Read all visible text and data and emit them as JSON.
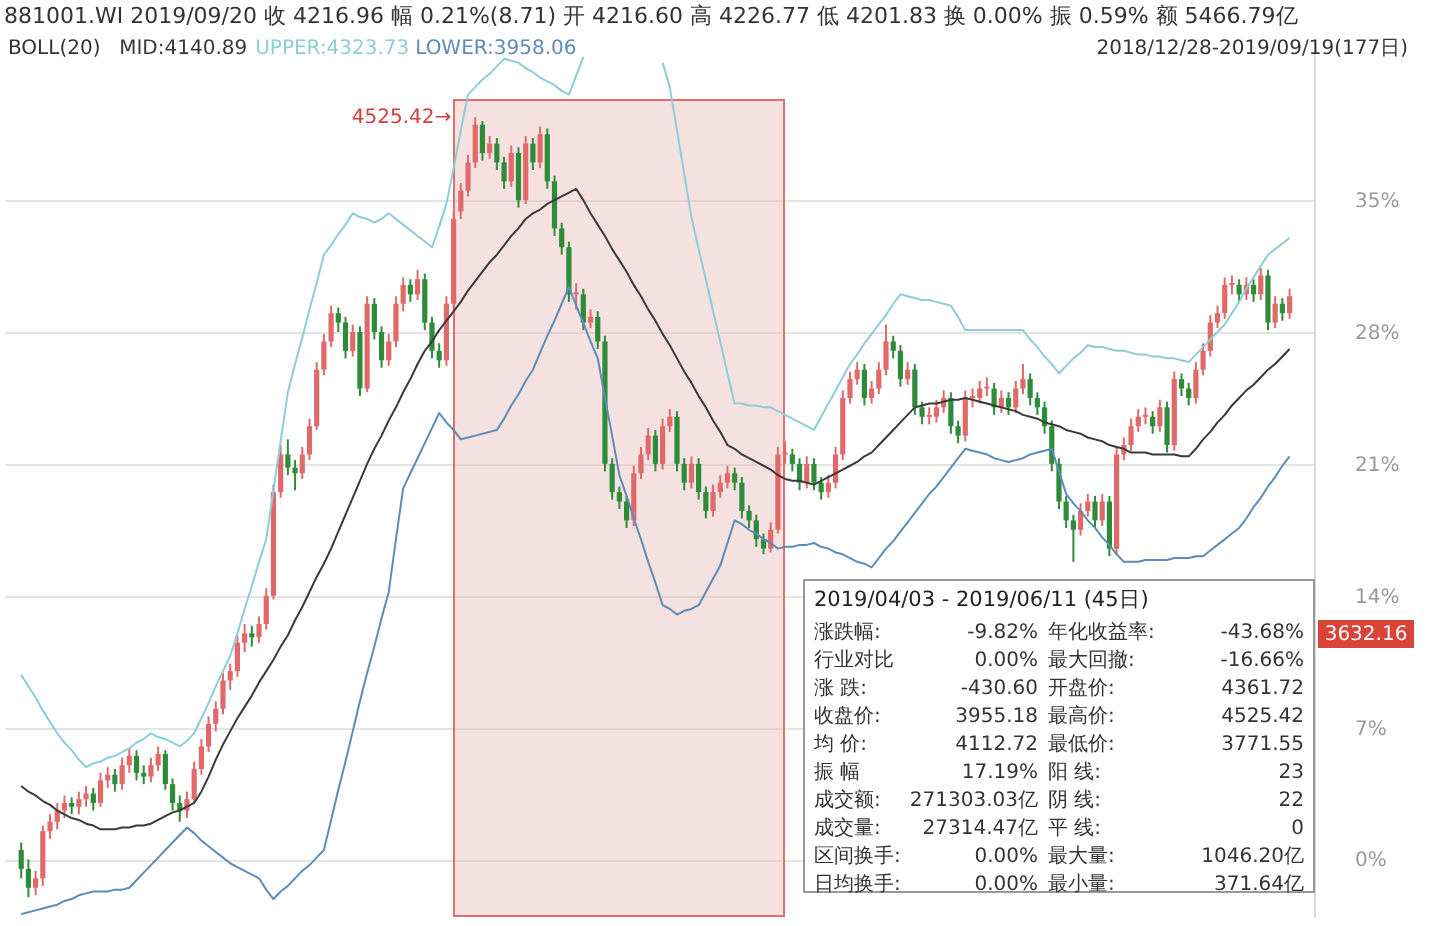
{
  "chart_data": {
    "type": "candlestick",
    "title": "881001.WI  2019/09/20  收 4216.96  幅 0.21%(8.71)  开 4216.60  高 4226.77  低 4201.83  换 0.00%  振 0.59%  额 5466.79亿",
    "categories": [
      null,
      null,
      null,
      null,
      null,
      null,
      null,
      null,
      null,
      null,
      null,
      null,
      null,
      null,
      null,
      null,
      null,
      null,
      null,
      null,
      null,
      null,
      null,
      null,
      null,
      null,
      null,
      null,
      null,
      null,
      null,
      null,
      null,
      null,
      null,
      null,
      null,
      null,
      null,
      null,
      null,
      null,
      null,
      null,
      null,
      null,
      null,
      null,
      null,
      null,
      null,
      null,
      null,
      null,
      null,
      null,
      null,
      null,
      null,
      null,
      null,
      null,
      null,
      null,
      null,
      null,
      null,
      null,
      null,
      null,
      null,
      null,
      null,
      null,
      null,
      null,
      null,
      null,
      null,
      null,
      null,
      null,
      null,
      null,
      null,
      null,
      null,
      null,
      null,
      null,
      null,
      null,
      null,
      null,
      null,
      null,
      null,
      null,
      null,
      null,
      null,
      null,
      null,
      null,
      null,
      null,
      null,
      null,
      null,
      null,
      null,
      null,
      null,
      null,
      null,
      null,
      null,
      null,
      null,
      null,
      null,
      null,
      null,
      null,
      null,
      null,
      null,
      null,
      null,
      null,
      null,
      null,
      null,
      null,
      null,
      null,
      null,
      null,
      null,
      null,
      null,
      null,
      null,
      null,
      null,
      null,
      null,
      null,
      null,
      null,
      null,
      null,
      null,
      null,
      null,
      null,
      null,
      null,
      null,
      null,
      null,
      null,
      null,
      null,
      null,
      null,
      null,
      null,
      null,
      null,
      null,
      null,
      null,
      null,
      null,
      null,
      null
    ],
    "colors": [
      "#2e8b3a",
      "#2e8b3a",
      "#e06a6a",
      "#e06a6a",
      "#e06a6a",
      "#e06a6a",
      "#e06a6a",
      "#2e8b3a",
      "#e06a6a",
      "#e06a6a",
      "#2e8b3a",
      "#e06a6a",
      "#e06a6a",
      "#2e8b3a",
      "#e06a6a",
      "#e06a6a",
      "#2e8b3a",
      "#2e8b3a",
      "#e06a6a",
      "#e06a6a",
      "#2e8b3a",
      "#2e8b3a",
      "#2e8b3a",
      "#e06a6a",
      "#e06a6a",
      "#e06a6a",
      "#e06a6a",
      "#e06a6a",
      "#e06a6a",
      "#e06a6a",
      "#e06a6a",
      "#e06a6a",
      "#2e8b3a",
      "#e06a6a",
      "#e06a6a",
      "#e06a6a",
      "#e06a6a",
      "#2e8b3a",
      "#2e8b3a",
      "#e06a6a",
      "#e06a6a",
      "#e06a6a",
      "#e06a6a",
      "#e06a6a",
      "#2e8b3a",
      "#2e8b3a",
      "#e06a6a",
      "#2e8b3a",
      "#e06a6a",
      "#2e8b3a",
      "#2e8b3a",
      "#e06a6a",
      "#e06a6a",
      "#e06a6a",
      "#2e8b3a",
      "#e06a6a",
      "#2e8b3a",
      "#2e8b3a",
      "#2e8b3a",
      "#e06a6a",
      "#e06a6a",
      "#e06a6a",
      "#e06a6a",
      "#e06a6a",
      "#2e8b3a",
      "#e06a6a",
      "#2e8b3a",
      "#2e8b3a",
      "#e06a6a",
      "#2e8b3a",
      "#e06a6a",
      "#2e8b3a",
      "#e06a6a",
      "#2e8b3a",
      "#2e8b3a",
      "#2e8b3a",
      "#2e8b3a",
      "#e06a6a",
      "#2e8b3a",
      "#e06a6a",
      "#2e8b3a",
      "#2e8b3a",
      "#2e8b3a",
      "#2e8b3a",
      "#2e8b3a",
      "#e06a6a",
      "#e06a6a",
      "#e06a6a",
      "#2e8b3a",
      "#e06a6a",
      "#e06a6a",
      "#2e8b3a",
      "#2e8b3a",
      "#e06a6a",
      "#2e8b3a",
      "#2e8b3a",
      "#e06a6a",
      "#e06a6a",
      "#e06a6a",
      "#2e8b3a",
      "#2e8b3a",
      "#2e8b3a",
      "#2e8b3a",
      "#2e8b3a",
      "#e06a6a",
      "#e06a6a",
      "#e06a6a",
      "#2e8b3a",
      "#2e8b3a",
      "#e06a6a",
      "#2e8b3a",
      "#2e8b3a",
      "#e06a6a",
      "#e06a6a",
      "#e06a6a",
      "#e06a6a",
      "#e06a6a",
      "#2e8b3a",
      "#e06a6a",
      "#e06a6a",
      "#e06a6a",
      "#2e8b3a",
      "#2e8b3a",
      "#e06a6a",
      "#2e8b3a",
      "#2e8b3a",
      "#e06a6a",
      "#e06a6a",
      "#e06a6a",
      "#2e8b3a",
      "#2e8b3a",
      "#e06a6a",
      "#e06a6a",
      "#e06a6a",
      "#e06a6a",
      "#2e8b3a",
      "#e06a6a",
      "#2e8b3a",
      "#e06a6a",
      "#e06a6a",
      "#2e8b3a",
      "#2e8b3a",
      "#2e8b3a",
      "#2e8b3a",
      "#2e8b3a",
      "#2e8b3a",
      "#2e8b3a",
      "#e06a6a",
      "#e06a6a",
      "#2e8b3a",
      "#e06a6a",
      "#2e8b3a",
      "#e06a6a",
      "#e06a6a",
      "#e06a6a",
      "#e06a6a",
      "#e06a6a",
      "#2e8b3a",
      "#e06a6a",
      "#2e8b3a",
      "#e06a6a",
      "#2e8b3a",
      "#2e8b3a",
      "#e06a6a",
      "#e06a6a",
      "#e06a6a",
      "#e06a6a",
      "#e06a6a",
      "#e06a6a",
      "#2e8b3a",
      "#e06a6a",
      "#2e8b3a",
      "#e06a6a",
      "#2e8b3a",
      "#e06a6a",
      "#2e8b3a",
      "#e06a6a"
    ],
    "ohlc": [
      [
        0.5,
        0.9,
        -1.0,
        -0.5
      ],
      [
        -0.5,
        0.0,
        -2.0,
        -1.5
      ],
      [
        -1.5,
        -0.6,
        -1.9,
        -1.0
      ],
      [
        -1.0,
        1.8,
        -1.4,
        1.5
      ],
      [
        1.5,
        2.4,
        1.1,
        2.0
      ],
      [
        2.0,
        3.0,
        1.6,
        2.6
      ],
      [
        2.6,
        3.4,
        2.2,
        3.0
      ],
      [
        3.0,
        3.3,
        2.4,
        2.8
      ],
      [
        2.8,
        3.6,
        2.4,
        3.2
      ],
      [
        3.2,
        3.9,
        2.8,
        3.5
      ],
      [
        3.5,
        3.8,
        2.6,
        3.0
      ],
      [
        3.0,
        4.6,
        2.8,
        4.2
      ],
      [
        4.2,
        4.9,
        3.8,
        4.5
      ],
      [
        4.5,
        4.8,
        3.6,
        4.0
      ],
      [
        4.0,
        5.4,
        3.7,
        5.0
      ],
      [
        5.0,
        5.9,
        4.6,
        5.5
      ],
      [
        5.5,
        5.8,
        4.2,
        4.6
      ],
      [
        4.6,
        5.0,
        4.0,
        4.4
      ],
      [
        4.4,
        5.4,
        4.1,
        5.0
      ],
      [
        5.0,
        6.0,
        4.7,
        5.6
      ],
      [
        5.6,
        5.8,
        3.7,
        4.0
      ],
      [
        4.0,
        4.3,
        2.6,
        3.0
      ],
      [
        3.0,
        3.4,
        2.0,
        2.6
      ],
      [
        2.6,
        3.6,
        2.2,
        3.2
      ],
      [
        3.2,
        5.2,
        3.0,
        4.8
      ],
      [
        4.8,
        6.4,
        4.5,
        6.0
      ],
      [
        6.0,
        7.6,
        5.7,
        7.2
      ],
      [
        7.2,
        8.4,
        6.8,
        8.0
      ],
      [
        8.0,
        9.9,
        7.7,
        9.5
      ],
      [
        9.5,
        10.4,
        9.0,
        10.0
      ],
      [
        10.0,
        11.9,
        9.7,
        11.5
      ],
      [
        11.5,
        12.5,
        11.0,
        12.0
      ],
      [
        12.0,
        12.4,
        11.3,
        11.8
      ],
      [
        11.8,
        12.9,
        11.5,
        12.5
      ],
      [
        12.5,
        14.4,
        12.2,
        14.0
      ],
      [
        14.0,
        19.9,
        13.8,
        19.5
      ],
      [
        19.5,
        22.0,
        19.2,
        21.5
      ],
      [
        21.5,
        22.3,
        20.4,
        20.8
      ],
      [
        20.8,
        21.2,
        19.6,
        20.5
      ],
      [
        20.5,
        21.9,
        20.2,
        21.5
      ],
      [
        21.5,
        23.4,
        21.2,
        23.0
      ],
      [
        23.0,
        26.4,
        22.8,
        26.0
      ],
      [
        26.0,
        27.9,
        25.7,
        27.5
      ],
      [
        27.5,
        29.4,
        27.2,
        29.0
      ],
      [
        29.0,
        29.3,
        28.0,
        28.5
      ],
      [
        28.5,
        28.8,
        26.6,
        27.0
      ],
      [
        27.0,
        28.4,
        26.7,
        28.0
      ],
      [
        28.0,
        28.3,
        24.6,
        25.0
      ],
      [
        25.0,
        29.9,
        24.8,
        29.5
      ],
      [
        29.5,
        29.8,
        27.6,
        28.0
      ],
      [
        28.0,
        28.3,
        26.1,
        26.5
      ],
      [
        26.5,
        27.9,
        26.2,
        27.5
      ],
      [
        27.5,
        29.9,
        27.2,
        29.5
      ],
      [
        29.5,
        30.9,
        29.1,
        30.5
      ],
      [
        30.5,
        30.8,
        29.6,
        30.0
      ],
      [
        30.0,
        31.3,
        29.7,
        30.8
      ],
      [
        30.8,
        31.1,
        28.1,
        28.5
      ],
      [
        28.5,
        28.8,
        26.6,
        27.0
      ],
      [
        27.0,
        27.4,
        26.1,
        26.5
      ],
      [
        26.5,
        29.9,
        26.2,
        29.5
      ],
      [
        29.5,
        34.4,
        29.2,
        34.0
      ],
      [
        34.4,
        35.9,
        34.0,
        35.5
      ],
      [
        35.5,
        37.4,
        35.2,
        37.0
      ],
      [
        37.0,
        39.4,
        36.7,
        39.0
      ],
      [
        39.0,
        39.2,
        37.1,
        37.5
      ],
      [
        37.5,
        38.4,
        37.2,
        38.0
      ],
      [
        38.0,
        38.3,
        36.6,
        37.0
      ],
      [
        37.0,
        37.3,
        35.6,
        36.0
      ],
      [
        36.0,
        37.9,
        35.7,
        37.5
      ],
      [
        37.5,
        37.8,
        34.6,
        35.0
      ],
      [
        35.0,
        38.4,
        34.8,
        38.0
      ],
      [
        38.0,
        38.3,
        36.6,
        37.0
      ],
      [
        37.0,
        38.9,
        36.7,
        38.5
      ],
      [
        38.5,
        38.8,
        35.6,
        36.0
      ],
      [
        36.0,
        36.3,
        33.1,
        33.5
      ],
      [
        33.5,
        33.8,
        32.1,
        32.5
      ],
      [
        32.5,
        32.8,
        29.6,
        30.0
      ],
      [
        30.0,
        30.6,
        29.2,
        30.1
      ],
      [
        30.0,
        30.3,
        28.1,
        28.5
      ],
      [
        28.5,
        29.2,
        28.2,
        28.8
      ],
      [
        28.8,
        29.1,
        27.1,
        27.5
      ],
      [
        27.5,
        27.8,
        20.6,
        21.0
      ],
      [
        21.0,
        21.3,
        19.1,
        19.5
      ],
      [
        19.5,
        19.8,
        18.6,
        19.0
      ],
      [
        19.0,
        19.3,
        17.6,
        18.0
      ],
      [
        18.0,
        20.9,
        17.7,
        20.5
      ],
      [
        20.5,
        21.9,
        20.2,
        21.5
      ],
      [
        21.5,
        22.9,
        21.2,
        22.5
      ],
      [
        22.5,
        22.8,
        20.6,
        21.0
      ],
      [
        21.0,
        23.4,
        20.7,
        23.0
      ],
      [
        23.0,
        23.9,
        22.7,
        23.5
      ],
      [
        23.5,
        23.8,
        20.6,
        21.0
      ],
      [
        21.0,
        21.3,
        19.6,
        20.0
      ],
      [
        20.0,
        21.4,
        19.7,
        21.0
      ],
      [
        21.0,
        21.3,
        19.1,
        19.5
      ],
      [
        19.5,
        19.8,
        18.1,
        18.5
      ],
      [
        18.5,
        19.9,
        18.2,
        19.5
      ],
      [
        19.5,
        20.4,
        19.2,
        20.0
      ],
      [
        20.0,
        20.9,
        19.7,
        20.5
      ],
      [
        20.5,
        20.8,
        19.6,
        20.0
      ],
      [
        20.0,
        20.3,
        18.1,
        18.5
      ],
      [
        18.5,
        18.8,
        17.6,
        18.0
      ],
      [
        18.0,
        18.3,
        16.6,
        17.0
      ],
      [
        17.0,
        17.3,
        16.2,
        16.5
      ],
      [
        16.5,
        17.9,
        16.3,
        17.5
      ],
      [
        17.5,
        21.9,
        17.3,
        21.5
      ],
      [
        21.5,
        22.2,
        21.0,
        21.6
      ],
      [
        21.5,
        21.8,
        20.6,
        21.0
      ],
      [
        21.0,
        21.3,
        19.6,
        20.0
      ],
      [
        20.0,
        21.4,
        19.7,
        21.0
      ],
      [
        21.0,
        21.3,
        19.6,
        20.0
      ],
      [
        20.0,
        20.3,
        19.1,
        19.5
      ],
      [
        19.5,
        20.4,
        19.2,
        20.0
      ],
      [
        20.0,
        21.9,
        19.7,
        21.5
      ],
      [
        21.5,
        24.9,
        21.2,
        24.5
      ],
      [
        24.5,
        25.9,
        24.2,
        25.5
      ],
      [
        25.5,
        26.4,
        25.2,
        26.0
      ],
      [
        26.0,
        26.3,
        24.1,
        24.5
      ],
      [
        24.5,
        25.4,
        24.2,
        25.0
      ],
      [
        25.0,
        26.4,
        24.7,
        26.0
      ],
      [
        26.0,
        28.4,
        25.7,
        27.5
      ],
      [
        27.5,
        27.8,
        26.6,
        27.0
      ],
      [
        27.0,
        27.3,
        25.1,
        25.5
      ],
      [
        25.5,
        26.4,
        25.2,
        26.0
      ],
      [
        26.0,
        26.3,
        23.6,
        24.0
      ],
      [
        24.0,
        24.3,
        23.1,
        23.5
      ],
      [
        23.5,
        24.0,
        23.1,
        23.6
      ],
      [
        23.5,
        24.4,
        23.2,
        24.0
      ],
      [
        24.0,
        24.9,
        23.7,
        24.5
      ],
      [
        24.5,
        24.8,
        22.6,
        23.0
      ],
      [
        23.0,
        23.3,
        22.1,
        22.5
      ],
      [
        22.5,
        24.9,
        22.2,
        24.5
      ],
      [
        24.5,
        25.0,
        24.0,
        24.6
      ],
      [
        24.5,
        25.4,
        24.2,
        25.0
      ],
      [
        25.0,
        25.6,
        24.6,
        25.1
      ],
      [
        25.0,
        25.3,
        23.6,
        24.0
      ],
      [
        24.0,
        24.9,
        23.7,
        24.5
      ],
      [
        24.5,
        24.8,
        23.6,
        24.0
      ],
      [
        24.0,
        25.4,
        23.7,
        25.0
      ],
      [
        25.0,
        26.3,
        24.7,
        25.5
      ],
      [
        25.5,
        25.8,
        24.1,
        24.5
      ],
      [
        24.5,
        24.8,
        23.6,
        24.0
      ],
      [
        24.0,
        24.3,
        22.6,
        23.0
      ],
      [
        23.0,
        23.3,
        20.6,
        21.0
      ],
      [
        21.0,
        21.3,
        18.6,
        19.0
      ],
      [
        19.0,
        19.3,
        17.6,
        18.0
      ],
      [
        18.0,
        18.3,
        15.8,
        17.5
      ],
      [
        17.5,
        18.9,
        17.2,
        18.5
      ],
      [
        18.5,
        19.4,
        18.2,
        19.0
      ],
      [
        19.0,
        19.3,
        17.6,
        18.0
      ],
      [
        18.0,
        19.4,
        17.7,
        19.0
      ],
      [
        19.0,
        19.3,
        16.1,
        16.5
      ],
      [
        16.5,
        21.9,
        16.2,
        21.5
      ],
      [
        21.5,
        22.4,
        21.2,
        22.0
      ],
      [
        22.0,
        23.4,
        21.7,
        23.0
      ],
      [
        23.0,
        23.9,
        22.7,
        23.5
      ],
      [
        23.5,
        24.0,
        23.1,
        23.6
      ],
      [
        23.5,
        23.8,
        22.6,
        23.0
      ],
      [
        23.0,
        24.4,
        22.7,
        24.0
      ],
      [
        24.0,
        24.3,
        21.6,
        22.0
      ],
      [
        22.0,
        25.9,
        21.7,
        25.5
      ],
      [
        25.5,
        25.8,
        24.6,
        25.0
      ],
      [
        25.0,
        25.3,
        24.1,
        24.5
      ],
      [
        24.5,
        26.4,
        24.2,
        26.0
      ],
      [
        26.0,
        27.4,
        25.7,
        27.0
      ],
      [
        27.0,
        28.9,
        26.7,
        28.5
      ],
      [
        28.5,
        29.4,
        28.2,
        29.0
      ],
      [
        29.0,
        30.9,
        28.7,
        30.5
      ],
      [
        30.5,
        31.0,
        30.0,
        30.6
      ],
      [
        30.5,
        30.8,
        29.6,
        30.0
      ],
      [
        30.0,
        30.9,
        29.7,
        30.5
      ],
      [
        30.5,
        30.8,
        29.6,
        30.0
      ],
      [
        30.0,
        31.4,
        29.7,
        31.0
      ],
      [
        31.0,
        31.3,
        28.1,
        28.5
      ],
      [
        28.5,
        29.9,
        28.2,
        29.5
      ],
      [
        29.5,
        29.8,
        28.6,
        29.0
      ],
      [
        29.0,
        30.3,
        28.7,
        29.9
      ]
    ],
    "series": [
      {
        "type": "line",
        "name": "MID:4140.89",
        "color": "#3a3a3a",
        "values": [
          3.9,
          3.6,
          3.4,
          3.1,
          2.9,
          2.6,
          2.4,
          2.2,
          2.1,
          1.9,
          1.8,
          1.6,
          1.6,
          1.6,
          1.7,
          1.7,
          1.8,
          1.8,
          1.9,
          2.1,
          2.3,
          2.5,
          2.6,
          2.8,
          3.0,
          3.6,
          4.4,
          5.3,
          6.1,
          6.8,
          7.5,
          8.1,
          8.7,
          9.4,
          10.0,
          10.6,
          11.3,
          11.9,
          12.7,
          13.4,
          14.2,
          15.0,
          15.7,
          16.5,
          17.4,
          18.3,
          19.2,
          20.1,
          21.0,
          21.8,
          22.5,
          23.3,
          24.0,
          24.8,
          25.5,
          26.3,
          27.0,
          27.5,
          28.1,
          28.6,
          29.1,
          29.6,
          30.2,
          30.7,
          31.2,
          31.7,
          32.1,
          32.6,
          33.1,
          33.5,
          34.0,
          34.3,
          34.5,
          34.8,
          35.0,
          35.2,
          35.4,
          35.6,
          35.0,
          34.3,
          33.7,
          33.1,
          32.4,
          31.8,
          31.2,
          30.5,
          29.9,
          29.2,
          28.6,
          27.9,
          27.3,
          26.6,
          25.9,
          25.3,
          24.6,
          24.0,
          23.3,
          22.7,
          22.0,
          21.8,
          21.5,
          21.3,
          21.1,
          20.9,
          20.7,
          20.4,
          20.2,
          20.1,
          20.1,
          20.0,
          19.9,
          20.1,
          20.3,
          20.5,
          20.7,
          20.9,
          21.1,
          21.4,
          21.6,
          22.0,
          22.4,
          22.8,
          23.2,
          23.6,
          24.0,
          24.1,
          24.2,
          24.2,
          24.3,
          24.4,
          24.4,
          24.5,
          24.4,
          24.3,
          24.2,
          24.1,
          24.0,
          23.9,
          23.8,
          23.6,
          23.5,
          23.4,
          23.2,
          23.1,
          23.0,
          22.8,
          22.7,
          22.6,
          22.4,
          22.3,
          22.2,
          22.0,
          21.9,
          21.8,
          21.6,
          21.6,
          21.6,
          21.5,
          21.5,
          21.5,
          21.5,
          21.4,
          21.4,
          21.8,
          22.3,
          22.7,
          23.2,
          23.6,
          24.1,
          24.5,
          24.9,
          25.2,
          25.6,
          26.0,
          26.3,
          26.7,
          27.1
        ]
      },
      {
        "type": "line",
        "name": "UPPER:4323.73",
        "color": "#8ccdd6",
        "values": [
          9.8,
          9.2,
          8.6,
          7.9,
          7.3,
          6.7,
          6.2,
          5.8,
          5.3,
          4.9,
          5.1,
          5.2,
          5.4,
          5.5,
          5.7,
          5.9,
          6.2,
          6.4,
          6.7,
          6.5,
          6.4,
          6.2,
          6.0,
          6.3,
          6.7,
          7.5,
          8.3,
          9.2,
          10.0,
          10.8,
          12.0,
          13.3,
          14.5,
          15.8,
          17.0,
          19.6,
          22.2,
          24.8,
          26.3,
          27.7,
          29.2,
          30.6,
          32.1,
          32.6,
          33.2,
          33.7,
          34.3,
          34.1,
          34.0,
          33.8,
          34.0,
          34.3,
          34.0,
          33.7,
          33.4,
          33.1,
          32.8,
          32.5,
          33.6,
          34.8,
          36.7,
          38.7,
          40.6,
          41.0,
          41.4,
          41.7,
          42.1,
          42.5,
          42.4,
          42.3,
          42.0,
          41.8,
          41.5,
          41.3,
          41.1,
          40.8,
          40.6,
          41.6,
          42.6,
          null,
          null,
          null,
          null,
          null,
          null,
          null,
          null,
          null,
          null,
          42.3,
          41.0,
          38.7,
          36.4,
          34.1,
          32.4,
          30.8,
          29.1,
          27.5,
          25.8,
          24.2,
          24.2,
          24.1,
          24.1,
          24.0,
          24.0,
          23.8,
          23.6,
          23.4,
          23.2,
          23.0,
          22.8,
          23.5,
          24.2,
          24.9,
          25.6,
          26.3,
          26.8,
          27.4,
          27.9,
          28.4,
          28.9,
          29.5,
          30.0,
          29.9,
          29.8,
          29.7,
          29.7,
          29.6,
          29.5,
          29.4,
          28.8,
          28.1,
          28.1,
          28.1,
          28.1,
          28.1,
          28.1,
          28.1,
          28.1,
          28.1,
          27.6,
          27.2,
          26.7,
          26.3,
          25.8,
          26.2,
          26.6,
          26.9,
          27.3,
          27.2,
          27.2,
          27.1,
          27.0,
          27.0,
          26.9,
          26.8,
          26.8,
          26.7,
          26.7,
          26.6,
          26.6,
          26.5,
          26.4,
          26.8,
          27.2,
          27.6,
          28.0,
          28.4,
          29.0,
          29.6,
          30.3,
          30.9,
          31.5,
          32.1,
          32.4,
          32.7,
          33.0
        ]
      },
      {
        "type": "line",
        "name": "LOWER:3958.06",
        "color": "#5b8db8",
        "values": [
          -2.9,
          -2.8,
          -2.7,
          -2.6,
          -2.5,
          -2.4,
          -2.2,
          -2.1,
          -1.9,
          -1.8,
          -1.7,
          -1.7,
          -1.7,
          -1.6,
          -1.6,
          -1.5,
          -1.1,
          -0.7,
          -0.3,
          0.1,
          0.5,
          0.9,
          1.3,
          1.7,
          1.4,
          1.0,
          0.7,
          0.4,
          0.1,
          -0.2,
          -0.4,
          -0.6,
          -0.8,
          -1.0,
          -1.6,
          -2.1,
          -1.7,
          -1.4,
          -1.0,
          -0.6,
          -0.3,
          0.1,
          0.5,
          2.1,
          3.7,
          5.2,
          6.8,
          8.4,
          9.9,
          11.3,
          12.8,
          14.2,
          17.0,
          19.7,
          20.5,
          21.3,
          22.1,
          22.9,
          23.7,
          23.2,
          22.8,
          22.3,
          22.4,
          22.5,
          22.6,
          22.7,
          22.8,
          23.4,
          24.1,
          24.7,
          25.4,
          26.0,
          26.9,
          27.8,
          28.6,
          29.5,
          30.4,
          29.4,
          28.5,
          27.5,
          26.6,
          24.5,
          22.5,
          20.4,
          19.3,
          18.1,
          17.0,
          15.8,
          14.7,
          13.5,
          13.3,
          13.0,
          13.2,
          13.3,
          13.5,
          14.2,
          14.9,
          15.6,
          16.8,
          18.0,
          17.8,
          17.5,
          17.3,
          17.0,
          16.8,
          16.5,
          16.6,
          16.6,
          16.7,
          16.7,
          16.8,
          16.6,
          16.5,
          16.3,
          16.2,
          16.0,
          15.8,
          15.7,
          15.5,
          16.0,
          16.5,
          16.9,
          17.4,
          17.9,
          18.4,
          18.9,
          19.4,
          19.8,
          20.3,
          20.8,
          21.3,
          21.8,
          21.7,
          21.6,
          21.5,
          21.3,
          21.2,
          21.1,
          21.2,
          21.3,
          21.5,
          21.6,
          21.7,
          21.8,
          20.6,
          19.4,
          18.9,
          18.5,
          18.0,
          17.6,
          17.1,
          16.7,
          16.2,
          15.8,
          15.8,
          15.8,
          15.9,
          15.9,
          15.9,
          15.9,
          16.0,
          16.0,
          16.0,
          16.1,
          16.1,
          16.4,
          16.7,
          17.0,
          17.3,
          17.6,
          18.1,
          18.7,
          19.2,
          19.8,
          20.3,
          20.9,
          21.4
        ]
      }
    ],
    "ylim": [
      -3,
      43.5
    ],
    "yticks": [
      {
        "value": 0,
        "label": "0%"
      },
      {
        "value": 7,
        "label": "7%"
      },
      {
        "value": 14,
        "label": "14%"
      },
      {
        "value": 21,
        "label": "21%"
      },
      {
        "value": 28,
        "label": "28%"
      },
      {
        "value": 35,
        "label": "35%"
      }
    ],
    "tick_labels": "y",
    "grid": "y",
    "annotations": [
      "2018/12/28-2019/09/19(177日)",
      "BOLL(20)",
      "4525.42→",
      "3632.16",
      "2019/04/03 - 2019/06/11 (45日)",
      "涨跌幅:",
      "-9.82%",
      "年化收益率:",
      "-43.68%",
      "行业对比",
      "0.00%",
      "最大回撤:",
      "-16.66%",
      "涨  跌:",
      "-430.60",
      "开盘价:",
      "4361.72",
      "收盘价:",
      "3955.18",
      "最高价:",
      "4525.42",
      "均  价:",
      "4112.72",
      "最低价:",
      "3771.55",
      "振  幅",
      "17.19%",
      "阳  线:",
      "23",
      "成交额:",
      "271303.03亿",
      "阴  线:",
      "22",
      "成交量:",
      "27314.47亿",
      "平  线:",
      "0",
      "区间换手:",
      "0.00%",
      "最大量:",
      "1046.20亿",
      "日均换手:",
      "0.00%",
      "最小量:",
      "371.64亿"
    ]
  }
}
